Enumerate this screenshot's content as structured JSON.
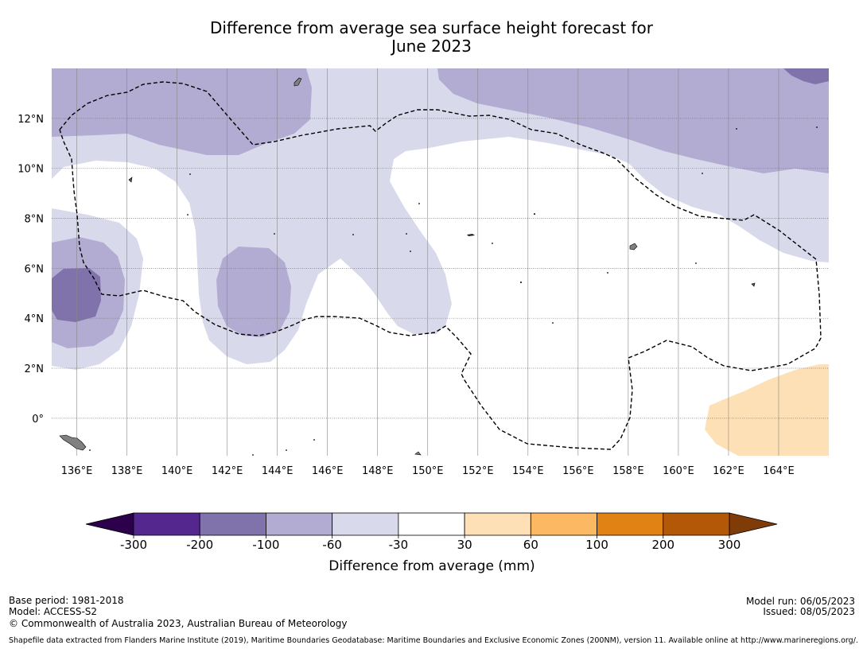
{
  "title": {
    "line1": "Difference from average sea surface height forecast for",
    "line2": "June 2023"
  },
  "map": {
    "lat_labels": [
      "12°N",
      "10°N",
      "8°N",
      "6°N",
      "4°N",
      "2°N",
      "0°"
    ],
    "lat_values": [
      12,
      10,
      8,
      6,
      4,
      2,
      0
    ],
    "lon_labels": [
      "136°E",
      "138°E",
      "140°E",
      "142°E",
      "144°E",
      "146°E",
      "148°E",
      "150°E",
      "152°E",
      "154°E",
      "156°E",
      "158°E",
      "160°E",
      "162°E",
      "164°E"
    ],
    "lon_values": [
      136,
      138,
      140,
      142,
      144,
      146,
      148,
      150,
      152,
      154,
      156,
      158,
      160,
      162,
      164
    ],
    "lon_range": [
      135,
      166
    ],
    "lat_range": [
      -1.5,
      14
    ],
    "boundary_style": "dashed"
  },
  "colorbar": {
    "label": "Difference from average (mm)",
    "tick_labels": [
      "-300",
      "-200",
      "-100",
      "-60",
      "-30",
      "30",
      "60",
      "100",
      "200",
      "300"
    ],
    "colors": [
      "#54278f",
      "#8073ac",
      "#b2abd2",
      "#d8daeb",
      "#ffffff",
      "#fee0b6",
      "#fdb863",
      "#e08214",
      "#b35806"
    ],
    "under_color": "#2d004b",
    "over_color": "#7f3b08"
  },
  "footer": {
    "base_period": "Base period: 1981-2018",
    "model": "Model: ACCESS-S2",
    "copyright": "© Commonwealth of Australia 2023, Australian Bureau of Meteorology",
    "model_run": "Model run: 06/05/2023",
    "issued": "Issued: 08/05/2023",
    "shapefile": "Shapefile data extracted from Flanders Marine Institute (2019), Maritime Boundaries Geodatabase: Maritime Boundaries and Exclusive Economic Zones (200NM), version 11. Available online at http://www.marineregions.org/."
  }
}
